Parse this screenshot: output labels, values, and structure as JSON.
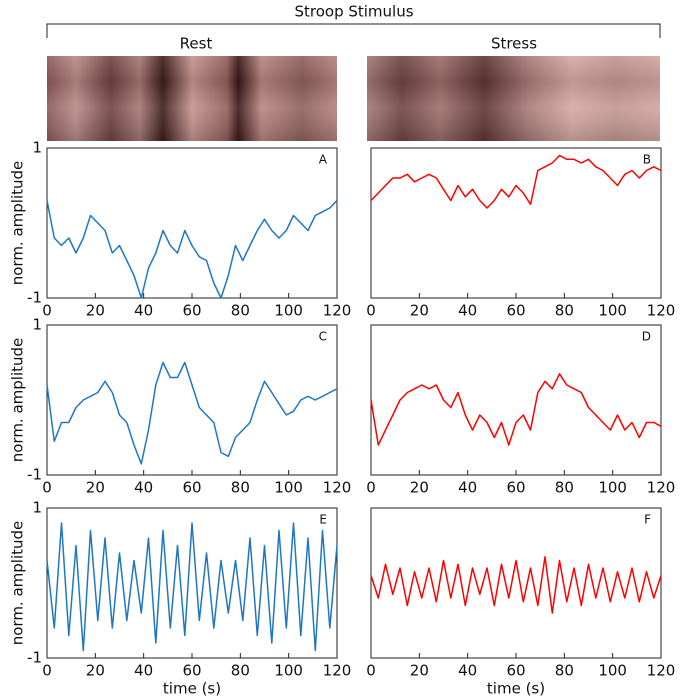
{
  "header": {
    "title": "Stroop Stimulus",
    "columns": [
      "Rest",
      "Stress"
    ]
  },
  "chart_data": [
    {
      "type": "line",
      "title": "A",
      "ylabel": "norm. amplitude",
      "color": "#1f77c4",
      "x": [
        0,
        3,
        6,
        9,
        12,
        15,
        18,
        21,
        24,
        27,
        30,
        33,
        36,
        39,
        42,
        45,
        48,
        51,
        54,
        57,
        60,
        63,
        66,
        69,
        72,
        75,
        78,
        81,
        84,
        87,
        90,
        93,
        96,
        99,
        102,
        105,
        108,
        111,
        114,
        117,
        120
      ],
      "values": [
        0.3,
        -0.2,
        -0.3,
        -0.2,
        -0.4,
        -0.2,
        0.1,
        0.0,
        -0.1,
        -0.4,
        -0.3,
        -0.5,
        -0.7,
        -1.0,
        -0.6,
        -0.4,
        -0.1,
        -0.3,
        -0.4,
        -0.1,
        -0.3,
        -0.45,
        -0.5,
        -0.8,
        -1.0,
        -0.7,
        -0.3,
        -0.5,
        -0.3,
        -0.1,
        0.05,
        -0.1,
        -0.2,
        -0.1,
        0.1,
        0.0,
        -0.1,
        0.1,
        0.15,
        0.2,
        0.3
      ],
      "xlim": [
        0,
        120
      ],
      "xticks": [
        0,
        20,
        40,
        60,
        80,
        100,
        120
      ],
      "ylim": [
        -1,
        1
      ],
      "yticks": [
        -1,
        1
      ],
      "show_ytick_labels": true
    },
    {
      "type": "line",
      "title": "B",
      "color": "#ff0000",
      "x": [
        0,
        3,
        6,
        9,
        12,
        15,
        18,
        21,
        24,
        27,
        30,
        33,
        36,
        39,
        42,
        45,
        48,
        51,
        54,
        57,
        60,
        63,
        66,
        69,
        72,
        75,
        78,
        81,
        84,
        87,
        90,
        93,
        96,
        99,
        102,
        105,
        108,
        111,
        114,
        117,
        120
      ],
      "values": [
        0.3,
        0.4,
        0.5,
        0.6,
        0.6,
        0.65,
        0.55,
        0.6,
        0.65,
        0.6,
        0.45,
        0.3,
        0.5,
        0.35,
        0.45,
        0.3,
        0.2,
        0.3,
        0.45,
        0.35,
        0.5,
        0.4,
        0.25,
        0.7,
        0.75,
        0.8,
        0.9,
        0.85,
        0.85,
        0.8,
        0.85,
        0.75,
        0.7,
        0.6,
        0.5,
        0.65,
        0.7,
        0.6,
        0.7,
        0.75,
        0.7
      ],
      "xlim": [
        0,
        120
      ],
      "xticks": [
        0,
        20,
        40,
        60,
        80,
        100,
        120
      ],
      "ylim": [
        -1,
        1
      ],
      "yticks": [
        -1,
        1
      ],
      "show_ytick_labels": false
    },
    {
      "type": "line",
      "title": "C",
      "ylabel": "norm. amplitude",
      "color": "#1f77c4",
      "x": [
        0,
        3,
        6,
        9,
        12,
        15,
        18,
        21,
        24,
        27,
        30,
        33,
        36,
        39,
        42,
        45,
        48,
        51,
        54,
        57,
        60,
        63,
        66,
        69,
        72,
        75,
        78,
        81,
        84,
        87,
        90,
        93,
        96,
        99,
        102,
        105,
        108,
        111,
        114,
        117,
        120
      ],
      "values": [
        0.2,
        -0.55,
        -0.3,
        -0.3,
        -0.1,
        0.0,
        0.05,
        0.1,
        0.25,
        0.1,
        -0.2,
        -0.3,
        -0.6,
        -0.85,
        -0.4,
        0.2,
        0.5,
        0.3,
        0.3,
        0.5,
        0.2,
        -0.1,
        -0.2,
        -0.3,
        -0.7,
        -0.75,
        -0.5,
        -0.4,
        -0.3,
        0.0,
        0.25,
        0.1,
        -0.05,
        -0.2,
        -0.15,
        0.0,
        0.05,
        0.0,
        0.05,
        0.1,
        0.15
      ],
      "xlim": [
        0,
        120
      ],
      "xticks": [
        0,
        20,
        40,
        60,
        80,
        100,
        120
      ],
      "ylim": [
        -1,
        1
      ],
      "yticks": [
        -1,
        1
      ],
      "show_ytick_labels": true
    },
    {
      "type": "line",
      "title": "D",
      "color": "#ff0000",
      "x": [
        0,
        3,
        6,
        9,
        12,
        15,
        18,
        21,
        24,
        27,
        30,
        33,
        36,
        39,
        42,
        45,
        48,
        51,
        54,
        57,
        60,
        63,
        66,
        69,
        72,
        75,
        78,
        81,
        84,
        87,
        90,
        93,
        96,
        99,
        102,
        105,
        108,
        111,
        114,
        117,
        120
      ],
      "values": [
        0.0,
        -0.6,
        -0.4,
        -0.2,
        0.0,
        0.1,
        0.15,
        0.2,
        0.15,
        0.2,
        0.0,
        -0.1,
        0.1,
        -0.2,
        -0.4,
        -0.2,
        -0.3,
        -0.5,
        -0.3,
        -0.6,
        -0.3,
        -0.2,
        -0.4,
        0.1,
        0.25,
        0.15,
        0.35,
        0.2,
        0.15,
        0.1,
        -0.1,
        -0.2,
        -0.3,
        -0.4,
        -0.2,
        -0.4,
        -0.3,
        -0.5,
        -0.3,
        -0.3,
        -0.35
      ],
      "xlim": [
        0,
        120
      ],
      "xticks": [
        0,
        20,
        40,
        60,
        80,
        100,
        120
      ],
      "ylim": [
        -1,
        1
      ],
      "yticks": [
        -1,
        1
      ],
      "show_ytick_labels": false
    },
    {
      "type": "line",
      "title": "E",
      "ylabel": "norm. amplitude",
      "xlabel": "time (s)",
      "color": "#1f77c4",
      "x": [
        0,
        3,
        6,
        9,
        12,
        15,
        18,
        21,
        24,
        27,
        30,
        33,
        36,
        39,
        42,
        45,
        48,
        51,
        54,
        57,
        60,
        63,
        66,
        69,
        72,
        75,
        78,
        81,
        84,
        87,
        90,
        93,
        96,
        99,
        102,
        105,
        108,
        111,
        114,
        117,
        120
      ],
      "values": [
        0.3,
        -0.6,
        0.8,
        -0.7,
        0.5,
        -0.9,
        0.7,
        -0.5,
        0.6,
        -0.6,
        0.4,
        -0.5,
        0.3,
        -0.4,
        0.6,
        -0.8,
        0.7,
        -0.6,
        0.5,
        -0.7,
        0.8,
        -0.5,
        0.4,
        -0.6,
        0.3,
        -0.4,
        0.3,
        -0.5,
        0.6,
        -0.7,
        0.5,
        -0.8,
        0.7,
        -0.6,
        0.8,
        -0.7,
        0.6,
        -0.9,
        0.7,
        -0.6,
        0.5
      ],
      "xlim": [
        0,
        120
      ],
      "xticks": [
        0,
        20,
        40,
        60,
        80,
        100,
        120
      ],
      "ylim": [
        -1,
        1
      ],
      "yticks": [
        -1,
        1
      ],
      "show_ytick_labels": true
    },
    {
      "type": "line",
      "title": "F",
      "xlabel": "time (s)",
      "color": "#ff0000",
      "x": [
        0,
        3,
        6,
        9,
        12,
        15,
        18,
        21,
        24,
        27,
        30,
        33,
        36,
        39,
        42,
        45,
        48,
        51,
        54,
        57,
        60,
        63,
        66,
        69,
        72,
        75,
        78,
        81,
        84,
        87,
        90,
        93,
        96,
        99,
        102,
        105,
        108,
        111,
        114,
        117,
        120
      ],
      "values": [
        0.1,
        -0.2,
        0.25,
        -0.15,
        0.2,
        -0.3,
        0.15,
        -0.2,
        0.2,
        -0.25,
        0.3,
        -0.2,
        0.25,
        -0.3,
        0.2,
        -0.15,
        0.2,
        -0.3,
        0.25,
        -0.2,
        0.3,
        -0.25,
        0.2,
        -0.3,
        0.35,
        -0.4,
        0.3,
        -0.25,
        0.2,
        -0.3,
        0.25,
        -0.2,
        0.2,
        -0.25,
        0.15,
        -0.2,
        0.2,
        -0.25,
        0.15,
        -0.2,
        0.1
      ],
      "xlim": [
        0,
        120
      ],
      "xticks": [
        0,
        20,
        40,
        60,
        80,
        100,
        120
      ],
      "ylim": [
        -1,
        1
      ],
      "yticks": [
        -1,
        1
      ],
      "show_ytick_labels": false
    }
  ]
}
